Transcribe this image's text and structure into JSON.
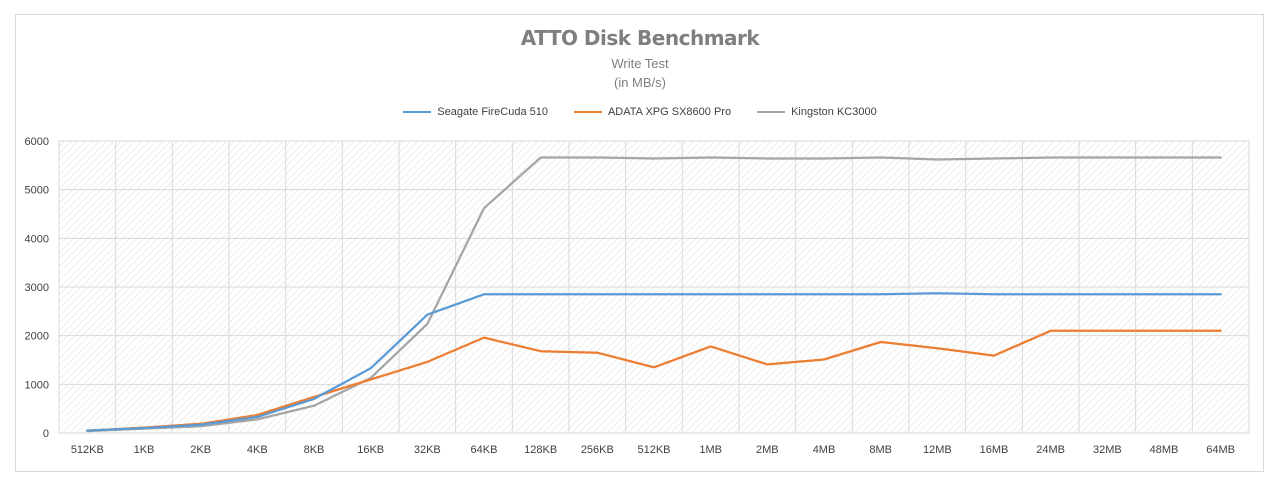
{
  "chart_data": {
    "type": "line",
    "title": "ATTO Disk Benchmark",
    "subtitle": [
      "Write Test",
      "(in MB/s)"
    ],
    "xlabel": "",
    "ylabel": "",
    "ylim": [
      0,
      6000
    ],
    "yticks": [
      "0",
      "1000",
      "2000",
      "3000",
      "4000",
      "5000",
      "6000"
    ],
    "grid": "on (vertical and horizontal)",
    "legend_position": "top-center",
    "categories": [
      "512KB",
      "1KB",
      "2KB",
      "4KB",
      "8KB",
      "16KB",
      "32KB",
      "64KB",
      "128KB",
      "256KB",
      "512KB",
      "1MB",
      "2MB",
      "4MB",
      "8MB",
      "12MB",
      "16MB",
      "24MB",
      "32MB",
      "48MB",
      "64MB"
    ],
    "series": [
      {
        "name": "Seagate FireCuda 510",
        "color": "#5b9bd5",
        "values": [
          50,
          100,
          170,
          330,
          700,
          1330,
          2430,
          2850,
          2850,
          2850,
          2850,
          2850,
          2850,
          2850,
          2850,
          2870,
          2850,
          2850,
          2850,
          2850,
          2850
        ]
      },
      {
        "name": "ADATA XPG SX8600 Pro",
        "color": "#ed7d31",
        "values": [
          50,
          110,
          190,
          370,
          740,
          1100,
          1460,
          1960,
          1680,
          1650,
          1350,
          1780,
          1410,
          1510,
          1870,
          1740,
          1590,
          2100,
          2100,
          2100,
          2100
        ]
      },
      {
        "name": "Kingston KC3000",
        "color": "#a5a5a5",
        "values": [
          40,
          90,
          140,
          280,
          560,
          1130,
          2240,
          4620,
          5660,
          5660,
          5640,
          5660,
          5640,
          5640,
          5660,
          5620,
          5640,
          5660,
          5660,
          5660,
          5660
        ]
      }
    ]
  }
}
